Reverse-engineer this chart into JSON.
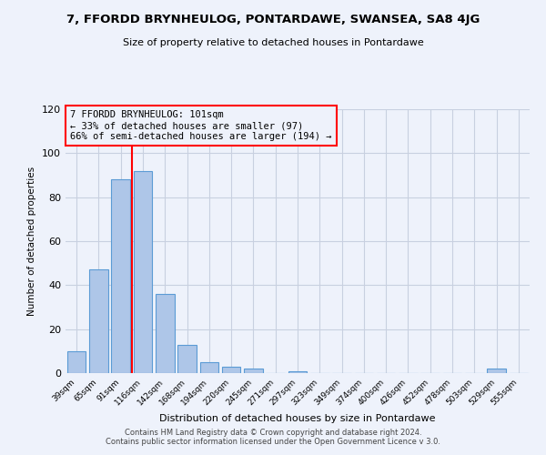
{
  "title": "7, FFORDD BRYNHEULOG, PONTARDAWE, SWANSEA, SA8 4JG",
  "subtitle": "Size of property relative to detached houses in Pontardawe",
  "xlabel": "Distribution of detached houses by size in Pontardawe",
  "ylabel": "Number of detached properties",
  "bin_labels": [
    "39sqm",
    "65sqm",
    "91sqm",
    "116sqm",
    "142sqm",
    "168sqm",
    "194sqm",
    "220sqm",
    "245sqm",
    "271sqm",
    "297sqm",
    "323sqm",
    "349sqm",
    "374sqm",
    "400sqm",
    "426sqm",
    "452sqm",
    "478sqm",
    "503sqm",
    "529sqm",
    "555sqm"
  ],
  "bar_values": [
    10,
    47,
    88,
    92,
    36,
    13,
    5,
    3,
    2,
    0,
    1,
    0,
    0,
    0,
    0,
    0,
    0,
    0,
    0,
    2,
    0
  ],
  "bar_color": "#aec6e8",
  "bar_edge_color": "#5b9bd5",
  "red_line_x": 2.5,
  "red_line_label": "7 FFORDD BRYNHEULOG: 101sqm",
  "annotation_line1": "← 33% of detached houses are smaller (97)",
  "annotation_line2": "66% of semi-detached houses are larger (194) →",
  "ylim": [
    0,
    120
  ],
  "yticks": [
    0,
    20,
    40,
    60,
    80,
    100,
    120
  ],
  "bg_color": "#eef2fb",
  "grid_color": "#c8d0e0",
  "footer1": "Contains HM Land Registry data © Crown copyright and database right 2024.",
  "footer2": "Contains public sector information licensed under the Open Government Licence v 3.0."
}
